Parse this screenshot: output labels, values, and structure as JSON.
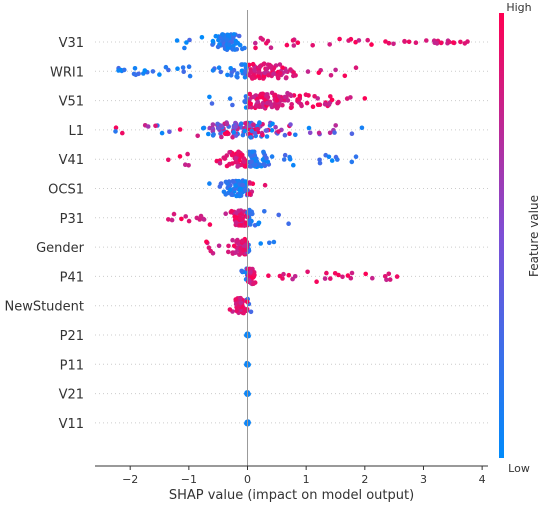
{
  "chart_data": {
    "type": "scatter",
    "subtype": "shap-beeswarm",
    "title": "",
    "xlabel": "SHAP value (impact on model output)",
    "ylabel": "",
    "xlim": [
      -2.6,
      4.1
    ],
    "xticks": [
      -2,
      -1,
      0,
      1,
      2,
      3,
      4
    ],
    "grid": false,
    "zero_line": true,
    "colorbar": {
      "title": "Feature value",
      "high_label": "High",
      "low_label": "Low",
      "low_color": "#008bfb",
      "high_color": "#ff0052"
    },
    "features": [
      {
        "name": "V31",
        "min": -1.2,
        "max": 3.75,
        "core": [
          -0.75,
          0.05
        ],
        "high_side": "right"
      },
      {
        "name": "WRI1",
        "min": -2.2,
        "max": 1.85,
        "core": [
          -0.55,
          1.0
        ],
        "high_side": "right"
      },
      {
        "name": "V51",
        "min": -0.65,
        "max": 2.0,
        "core": [
          -0.4,
          1.2
        ],
        "high_side": "right"
      },
      {
        "name": "L1",
        "min": -2.25,
        "max": 1.95,
        "core": [
          -0.9,
          0.7
        ],
        "high_side": "mixed"
      },
      {
        "name": "V41",
        "min": -1.35,
        "max": 1.85,
        "core": [
          -0.7,
          0.6
        ],
        "high_side": "left"
      },
      {
        "name": "OCS1",
        "min": -0.65,
        "max": 0.3,
        "core": [
          -0.5,
          0.25
        ],
        "high_side": "right"
      },
      {
        "name": "P31",
        "min": -1.35,
        "max": 0.7,
        "core": [
          -0.35,
          0.15
        ],
        "high_side": "left"
      },
      {
        "name": "Gender",
        "min": -0.7,
        "max": 0.45,
        "core": [
          -0.35,
          0.15
        ],
        "high_side": "left"
      },
      {
        "name": "P41",
        "min": -0.1,
        "max": 2.55,
        "core": [
          -0.05,
          0.15
        ],
        "high_side": "right"
      },
      {
        "name": "NewStudent",
        "min": -0.3,
        "max": 0.06,
        "core": [
          -0.25,
          0.05
        ],
        "high_side": "left"
      },
      {
        "name": "P21",
        "min": -0.02,
        "max": 0.02,
        "core": [
          -0.02,
          0.02
        ],
        "high_side": "none"
      },
      {
        "name": "P11",
        "min": -0.02,
        "max": 0.02,
        "core": [
          -0.02,
          0.02
        ],
        "high_side": "none"
      },
      {
        "name": "V21",
        "min": -0.02,
        "max": 0.02,
        "core": [
          -0.02,
          0.02
        ],
        "high_side": "none"
      },
      {
        "name": "V11",
        "min": -0.02,
        "max": 0.02,
        "core": [
          -0.02,
          0.02
        ],
        "high_side": "none"
      }
    ]
  }
}
